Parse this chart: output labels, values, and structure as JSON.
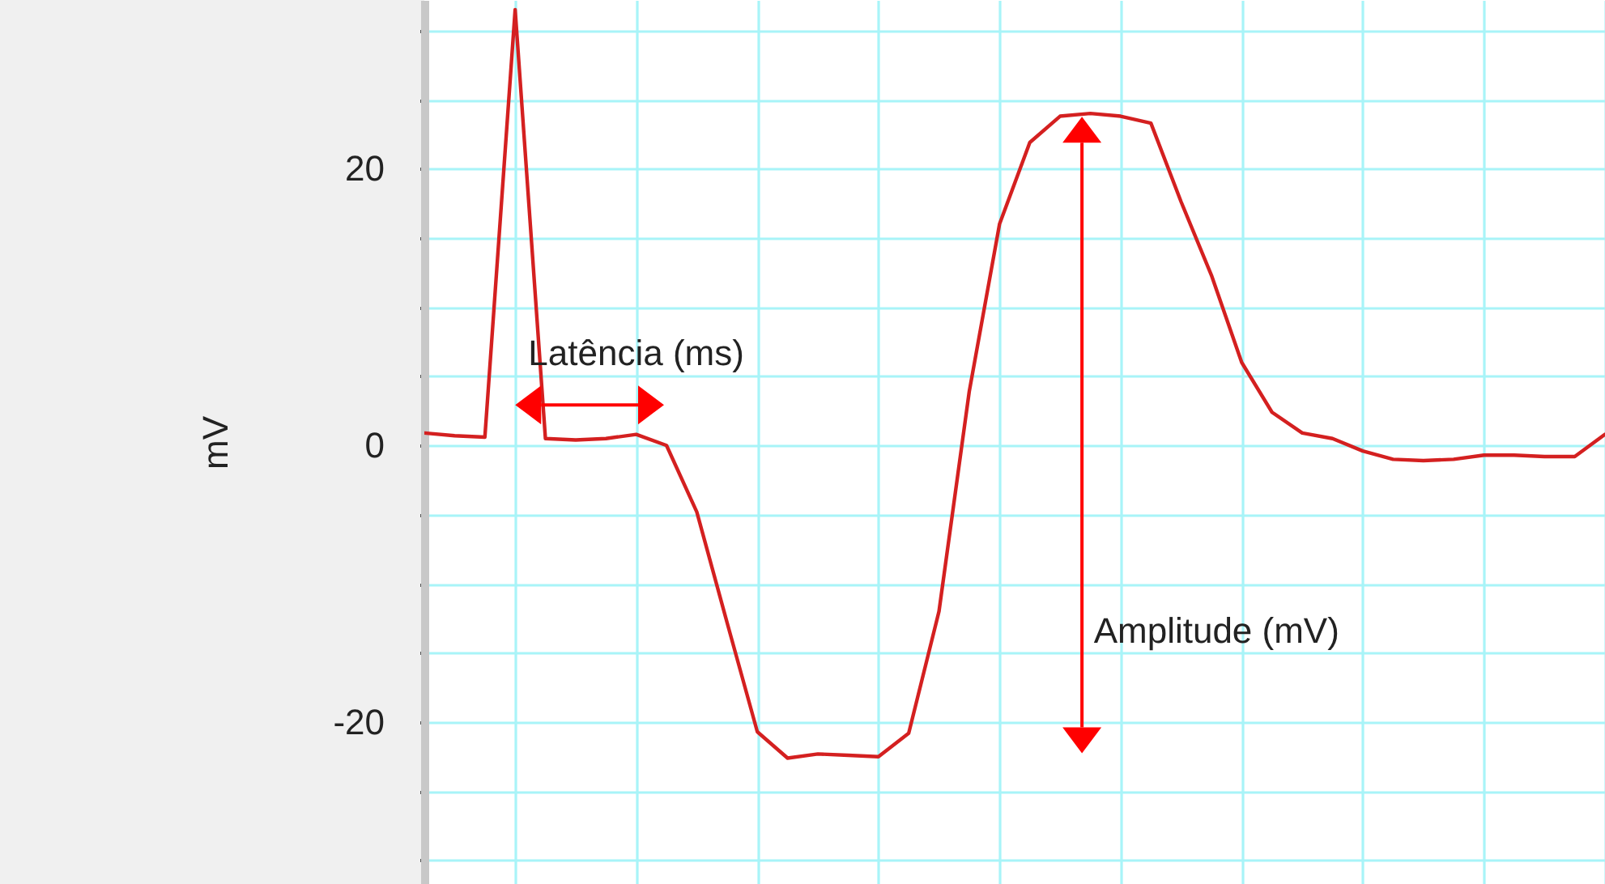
{
  "chart_data": {
    "type": "line",
    "ylabel": "mV",
    "categories": [
      null,
      null,
      null,
      null,
      null,
      null,
      null,
      null,
      null,
      null,
      null,
      null,
      null,
      null,
      null,
      null,
      null,
      null,
      null,
      null,
      null,
      null,
      null,
      null,
      null,
      null,
      null,
      null,
      null,
      null,
      null,
      null,
      null,
      null,
      null,
      null,
      null,
      null,
      null,
      null
    ],
    "series": [
      {
        "color": "#d42020",
        "values": [
          0.9,
          0.7,
          0.6,
          31.5,
          0.5,
          0.4,
          0.5,
          0.8,
          0.0,
          -4.8,
          -12.8,
          -20.7,
          -22.6,
          -22.3,
          -22.4,
          -22.5,
          -20.8,
          -12.0,
          3.9,
          16.0,
          21.9,
          23.8,
          24.0,
          23.8,
          23.3,
          17.6,
          12.3,
          6.0,
          2.4,
          0.9,
          0.5,
          -0.4,
          -1.0,
          -1.1,
          -1.0,
          -0.7,
          -0.7,
          -0.8,
          -0.8,
          0.8
        ]
      }
    ],
    "annotations": [
      "Latência (ms)",
      "Amplitude (mV)"
    ],
    "ylim": [
      -31.7,
      32.2
    ],
    "yticks": [
      {
        "value": -30,
        "label": null
      },
      {
        "value": -25,
        "label": null
      },
      -20,
      {
        "value": -15,
        "label": null
      },
      {
        "value": -10,
        "label": null
      },
      {
        "value": -5,
        "label": null
      },
      0,
      {
        "value": 5,
        "label": null
      },
      {
        "value": 10,
        "label": null
      },
      {
        "value": 15,
        "label": null
      },
      20,
      {
        "value": 25,
        "label": null
      },
      {
        "value": 30,
        "label": null
      }
    ],
    "tick_labels": "y",
    "grid": true,
    "line_style": "solid"
  }
}
